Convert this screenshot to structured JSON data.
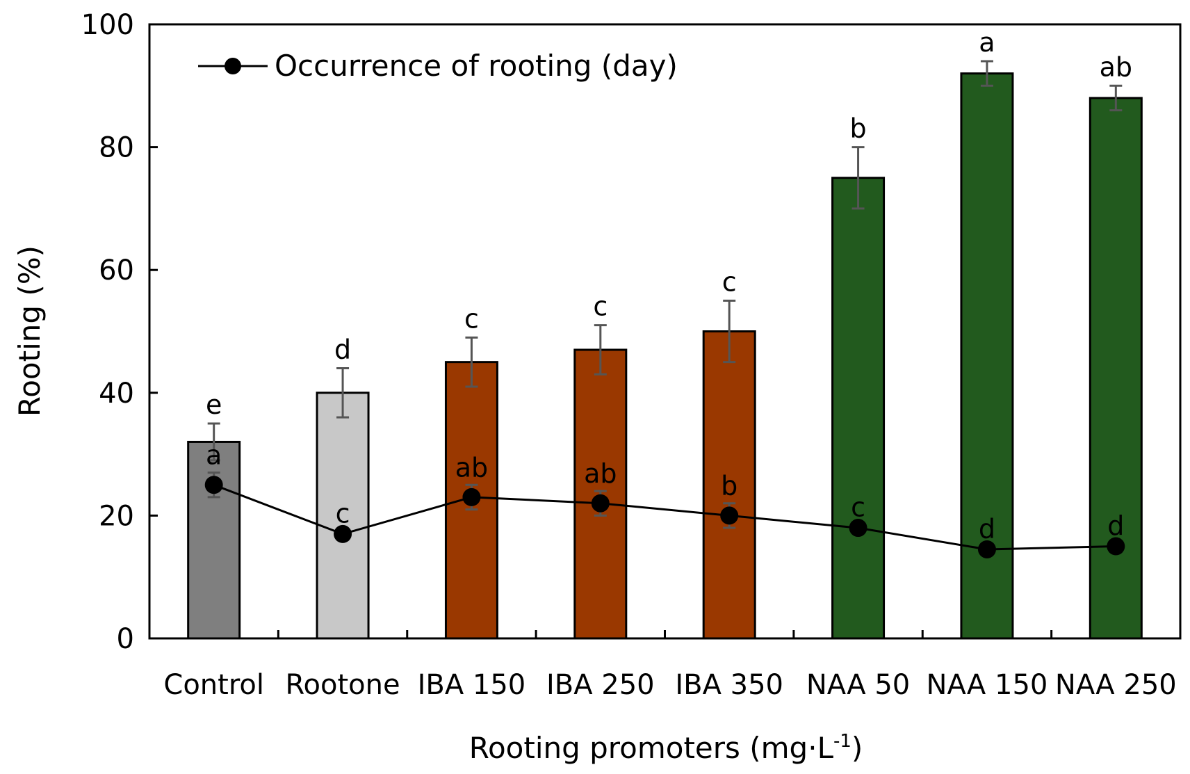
{
  "chart_data": {
    "type": "bar",
    "title": "",
    "xlabel": "Rooting promoters (mg·L",
    "xlabel_superscript": "-1",
    "xlabel_suffix": ")",
    "ylabel": "Rooting (%)",
    "ylim": [
      0,
      100
    ],
    "yticks": [
      0,
      20,
      40,
      60,
      80,
      100
    ],
    "grid": false,
    "categories": [
      "Control",
      "Rootone",
      "IBA 150",
      "IBA 250",
      "IBA 350",
      "NAA 50",
      "NAA 150",
      "NAA 250"
    ],
    "series": [
      {
        "name": "Rooting (%)",
        "kind": "bar",
        "values": [
          32,
          40,
          45,
          47,
          50,
          75,
          92,
          88
        ],
        "errors": [
          3,
          4,
          4,
          4,
          5,
          5,
          2,
          2
        ],
        "significance": [
          "e",
          "d",
          "c",
          "c",
          "c",
          "b",
          "a",
          "ab"
        ],
        "colors": [
          "#7f7f7f",
          "#c8c8c8",
          "#9a3800",
          "#9a3800",
          "#9a3800",
          "#225a1e",
          "#225a1e",
          "#225a1e"
        ]
      },
      {
        "name": "Occurrence of rooting (day)",
        "kind": "line",
        "values": [
          25,
          17,
          23,
          22,
          20,
          18,
          14.5,
          15
        ],
        "errors": [
          2,
          0.5,
          2,
          2,
          2,
          0.5,
          0.5,
          0.5
        ],
        "significance": [
          "a",
          "c",
          "ab",
          "ab",
          "b",
          "c",
          "d",
          "d"
        ],
        "color": "#000000"
      }
    ],
    "legend": {
      "position": "top-left",
      "entries": [
        "Occurrence of rooting (day)"
      ]
    }
  }
}
